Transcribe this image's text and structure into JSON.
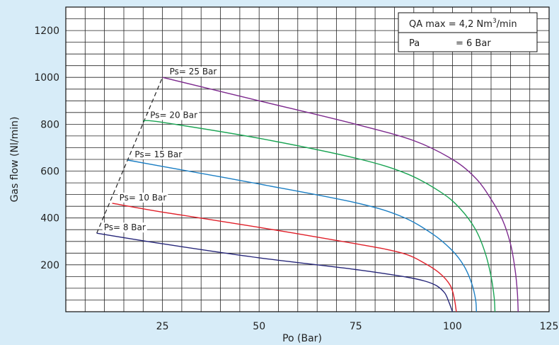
{
  "chart_data": {
    "type": "line",
    "title": "",
    "xlabel": "Po  (Bar)",
    "ylabel": "Gas flow (Nl/min)",
    "xlim": [
      0,
      125
    ],
    "ylim": [
      0,
      1300
    ],
    "x_ticks": [
      25,
      50,
      75,
      100,
      125
    ],
    "y_ticks": [
      200,
      400,
      600,
      800,
      1000,
      1200
    ],
    "grid": true,
    "legend": "none",
    "info_box": {
      "line1_prefix": "QA max = 4,2 Nm",
      "line1_sup": "3",
      "line1_suffix": "/min",
      "line2_key": "Pa",
      "line2_value": "= 6 Bar"
    },
    "max_flow_line": {
      "style": "dashed",
      "color": "#222222",
      "points": [
        [
          8,
          335
        ],
        [
          25,
          1000
        ]
      ]
    },
    "series": [
      {
        "label": "Ps= 8 Bar",
        "color": "#27277a",
        "points": [
          [
            8,
            335
          ],
          [
            25,
            290
          ],
          [
            50,
            230
          ],
          [
            75,
            180
          ],
          [
            88,
            148
          ],
          [
            93,
            130
          ],
          [
            96,
            110
          ],
          [
            98,
            80
          ],
          [
            99,
            45
          ],
          [
            100,
            0
          ]
        ]
      },
      {
        "label": "Ps= 10 Bar",
        "color": "#e0202a",
        "points": [
          [
            12,
            463
          ],
          [
            25,
            425
          ],
          [
            50,
            360
          ],
          [
            75,
            290
          ],
          [
            87,
            250
          ],
          [
            93,
            205
          ],
          [
            97,
            160
          ],
          [
            99.5,
            110
          ],
          [
            100.5,
            55
          ],
          [
            101,
            0
          ]
        ]
      },
      {
        "label": "Ps= 15 Bar",
        "color": "#1c7fc4",
        "points": [
          [
            16,
            647
          ],
          [
            25,
            620
          ],
          [
            50,
            545
          ],
          [
            75,
            465
          ],
          [
            87,
            405
          ],
          [
            95,
            330
          ],
          [
            100,
            260
          ],
          [
            103,
            195
          ],
          [
            105,
            120
          ],
          [
            106,
            50
          ],
          [
            106.2,
            0
          ]
        ]
      },
      {
        "label": "Ps= 20 Bar",
        "color": "#1aa453",
        "points": [
          [
            20,
            815
          ],
          [
            25,
            808
          ],
          [
            50,
            740
          ],
          [
            75,
            655
          ],
          [
            88,
            590
          ],
          [
            97,
            510
          ],
          [
            102,
            440
          ],
          [
            106,
            350
          ],
          [
            108.5,
            250
          ],
          [
            110,
            150
          ],
          [
            110.8,
            60
          ],
          [
            111,
            0
          ]
        ]
      },
      {
        "label": "Ps= 25 Bar",
        "color": "#7d2a8e",
        "points": [
          [
            25,
            1000
          ],
          [
            50,
            900
          ],
          [
            75,
            800
          ],
          [
            90,
            730
          ],
          [
            100,
            650
          ],
          [
            106,
            570
          ],
          [
            110,
            480
          ],
          [
            113,
            390
          ],
          [
            115,
            290
          ],
          [
            116.2,
            180
          ],
          [
            116.8,
            80
          ],
          [
            117,
            0
          ]
        ]
      }
    ]
  }
}
